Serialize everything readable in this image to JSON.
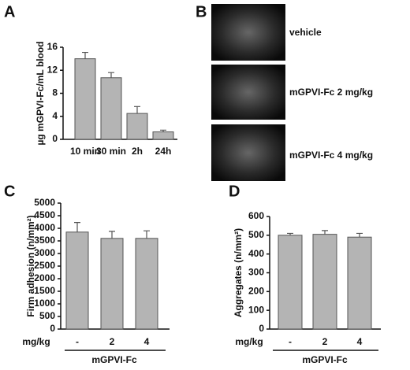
{
  "chart_data": [
    {
      "type": "bar",
      "panel": "A",
      "ylabel": "µg mGPVI-Fc/mL blood",
      "categories": [
        "10 min",
        "30 min",
        "2h",
        "24h"
      ],
      "values": [
        14,
        10.7,
        4.5,
        1.3
      ],
      "errors": [
        1.1,
        0.9,
        1.2,
        0.3
      ],
      "color": "#b4b4b4",
      "ylim": [
        0,
        16
      ],
      "yticks": [
        0,
        4,
        8,
        12,
        16
      ]
    },
    {
      "type": "bar",
      "panel": "C",
      "ylabel": "Firm adhesion (n/mm²)",
      "x_row_label": "mg/kg",
      "x_group_label": "mGPVI-Fc",
      "categories": [
        "-",
        "2",
        "4"
      ],
      "values": [
        3850,
        3600,
        3600
      ],
      "errors": [
        380,
        280,
        300
      ],
      "color": "#b4b4b4",
      "ylim": [
        0,
        5000
      ],
      "yticks": [
        0,
        500,
        1000,
        1500,
        2000,
        2500,
        3000,
        3500,
        4000,
        4500,
        5000
      ]
    },
    {
      "type": "bar",
      "panel": "D",
      "ylabel": "Aggregates (n/mm²)",
      "x_row_label": "mg/kg",
      "x_group_label": "mGPVI-Fc",
      "categories": [
        "-",
        "2",
        "4"
      ],
      "values": [
        500,
        505,
        490
      ],
      "errors": [
        10,
        20,
        20
      ],
      "color": "#b4b4b4",
      "ylim": [
        0,
        600
      ],
      "yticks": [
        0,
        100,
        200,
        300,
        400,
        500,
        600
      ]
    }
  ],
  "images": {
    "panel": "B",
    "labels": [
      "vehicle",
      "mGPVI-Fc 2 mg/kg",
      "mGPVI-Fc 4 mg/kg"
    ]
  }
}
